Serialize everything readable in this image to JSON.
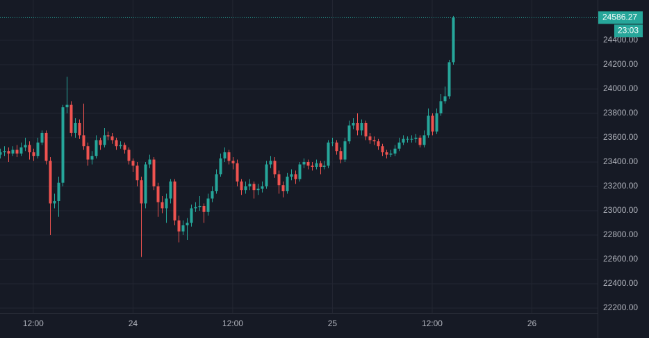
{
  "chart_data": {
    "type": "candlestick",
    "x": [
      0,
      1,
      2,
      3,
      4,
      5,
      6,
      7,
      8,
      9,
      10,
      11,
      12,
      13,
      14,
      15,
      16,
      17,
      18,
      19,
      20,
      21,
      22,
      23,
      24,
      25,
      26,
      27,
      28,
      29,
      30,
      31,
      32,
      33,
      34,
      35,
      36,
      37,
      38,
      39,
      40,
      41,
      42,
      43,
      44,
      45,
      46,
      47,
      48,
      49,
      50,
      51,
      52,
      53,
      54,
      55,
      56,
      57,
      58,
      59,
      60,
      61,
      62,
      63,
      64,
      65,
      66,
      67,
      68,
      69,
      70,
      71,
      72,
      73,
      74,
      75,
      76,
      77,
      78,
      79,
      80,
      81,
      82,
      83,
      84,
      85,
      86,
      87,
      88,
      89,
      90,
      91,
      92,
      93,
      94,
      95,
      96,
      97,
      98,
      99,
      100,
      101,
      102,
      103,
      104,
      105,
      106,
      107,
      108,
      109
    ],
    "open": [
      23460,
      23480,
      23490,
      23470,
      23500,
      23470,
      23520,
      23540,
      23480,
      23450,
      23560,
      23640,
      23410,
      23060,
      23080,
      23230,
      23850,
      23870,
      23640,
      23720,
      23620,
      23530,
      23420,
      23450,
      23580,
      23540,
      23620,
      23610,
      23580,
      23530,
      23540,
      23500,
      23410,
      23370,
      23250,
      23060,
      23380,
      23420,
      23200,
      23070,
      23020,
      23100,
      23240,
      22920,
      22830,
      22880,
      22900,
      23020,
      23030,
      23040,
      22990,
      23100,
      23160,
      23300,
      23430,
      23480,
      23410,
      23390,
      23240,
      23170,
      23200,
      23220,
      23170,
      23180,
      23200,
      23380,
      23410,
      23300,
      23210,
      23160,
      23280,
      23300,
      23260,
      23380,
      23400,
      23370,
      23360,
      23390,
      23360,
      23370,
      23560,
      23560,
      23490,
      23420,
      23570,
      23700,
      23720,
      23660,
      23720,
      23610,
      23580,
      23570,
      23530,
      23480,
      23460,
      23470,
      23510,
      23560,
      23590,
      23590,
      23590,
      23600,
      23540,
      23620,
      23780,
      23650,
      23800,
      23900,
      23940,
      24220
    ],
    "high": [
      23510,
      23530,
      23520,
      23530,
      23540,
      23560,
      23600,
      23570,
      23510,
      23600,
      23660,
      23660,
      23440,
      23140,
      23280,
      23870,
      24100,
      23900,
      23760,
      23750,
      23880,
      23560,
      23490,
      23620,
      23600,
      23680,
      23650,
      23640,
      23600,
      23570,
      23560,
      23520,
      23430,
      23400,
      23280,
      23400,
      23460,
      23440,
      23230,
      23120,
      23140,
      23260,
      23260,
      22960,
      22920,
      22940,
      23050,
      23070,
      23120,
      23060,
      23140,
      23200,
      23340,
      23470,
      23520,
      23500,
      23440,
      23420,
      23260,
      23240,
      23260,
      23240,
      23220,
      23240,
      23410,
      23450,
      23440,
      23330,
      23240,
      23310,
      23340,
      23330,
      23400,
      23430,
      23420,
      23400,
      23420,
      23410,
      23410,
      23580,
      23600,
      23580,
      23520,
      23600,
      23740,
      23760,
      23800,
      23750,
      23740,
      23640,
      23610,
      23590,
      23550,
      23500,
      23500,
      23540,
      23600,
      23620,
      23610,
      23620,
      23630,
      23620,
      23660,
      23840,
      23800,
      23840,
      23960,
      24020,
      24240,
      24600
    ],
    "low": [
      23430,
      23450,
      23400,
      23450,
      23440,
      23450,
      23490,
      23420,
      23410,
      23430,
      23540,
      23380,
      22800,
      23020,
      22950,
      23200,
      23800,
      23610,
      23600,
      23590,
      23500,
      23370,
      23380,
      23430,
      23500,
      23520,
      23580,
      23550,
      23500,
      23510,
      23470,
      23380,
      23320,
      23200,
      22620,
      23020,
      23350,
      23170,
      22950,
      22980,
      22900,
      23060,
      22880,
      22740,
      22800,
      22760,
      22870,
      22990,
      23000,
      22900,
      22960,
      23070,
      23140,
      23280,
      23400,
      23380,
      23340,
      23200,
      23130,
      23140,
      23170,
      23100,
      23130,
      23150,
      23180,
      23350,
      23270,
      23140,
      23110,
      23140,
      23250,
      23220,
      23240,
      23350,
      23340,
      23330,
      23340,
      23300,
      23340,
      23350,
      23530,
      23460,
      23390,
      23400,
      23550,
      23670,
      23620,
      23620,
      23580,
      23550,
      23540,
      23500,
      23450,
      23430,
      23440,
      23450,
      23490,
      23540,
      23560,
      23560,
      23560,
      23520,
      23520,
      23600,
      23620,
      23630,
      23780,
      23880,
      23920,
      24200
    ],
    "close": [
      23480,
      23490,
      23470,
      23500,
      23470,
      23520,
      23540,
      23480,
      23450,
      23560,
      23640,
      23410,
      23060,
      23080,
      23230,
      23850,
      23870,
      23640,
      23720,
      23620,
      23530,
      23420,
      23450,
      23580,
      23540,
      23620,
      23610,
      23580,
      23530,
      23540,
      23500,
      23410,
      23370,
      23250,
      23060,
      23380,
      23420,
      23200,
      23070,
      23020,
      23100,
      23240,
      22920,
      22830,
      22880,
      22900,
      23020,
      23030,
      23040,
      22990,
      23100,
      23160,
      23300,
      23430,
      23480,
      23410,
      23390,
      23240,
      23170,
      23200,
      23220,
      23170,
      23180,
      23200,
      23380,
      23410,
      23300,
      23210,
      23160,
      23280,
      23300,
      23260,
      23380,
      23400,
      23370,
      23360,
      23390,
      23360,
      23370,
      23560,
      23560,
      23490,
      23420,
      23570,
      23700,
      23720,
      23660,
      23720,
      23610,
      23580,
      23570,
      23530,
      23480,
      23460,
      23470,
      23510,
      23560,
      23590,
      23590,
      23590,
      23600,
      23540,
      23620,
      23780,
      23650,
      23800,
      23900,
      23940,
      24220,
      24586.27
    ],
    "up_color": "#26a69a",
    "down_color": "#ef5350",
    "countdown": "23:03",
    "xlim": [
      0,
      143.8
    ],
    "xticks": [
      {
        "value": 8,
        "label": "12:00"
      },
      {
        "value": 32,
        "label": "24"
      },
      {
        "value": 56,
        "label": "12:00"
      },
      {
        "value": 80,
        "label": "25"
      },
      {
        "value": 104,
        "label": "12:00"
      },
      {
        "value": 128,
        "label": "26"
      }
    ],
    "ylim": [
      22160,
      24731
    ],
    "yticks": [
      {
        "value": 22200,
        "label": "22200.00"
      },
      {
        "value": 22400,
        "label": "22400.00"
      },
      {
        "value": 22600,
        "label": "22600.00"
      },
      {
        "value": 22800,
        "label": "22800.00"
      },
      {
        "value": 23000,
        "label": "23000.00"
      },
      {
        "value": 23200,
        "label": "23200.00"
      },
      {
        "value": 23400,
        "label": "23400.00"
      },
      {
        "value": 23600,
        "label": "23600.00"
      },
      {
        "value": 23800,
        "label": "23800.00"
      },
      {
        "value": 24000,
        "label": "24000.00"
      },
      {
        "value": 24200,
        "label": "24200.00"
      },
      {
        "value": 24400,
        "label": "24400.00"
      }
    ],
    "grid": true
  }
}
